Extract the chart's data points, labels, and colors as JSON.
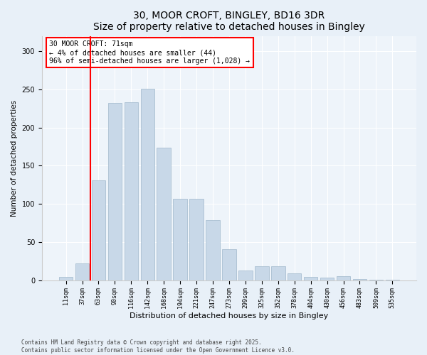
{
  "title1": "30, MOOR CROFT, BINGLEY, BD16 3DR",
  "title2": "Size of property relative to detached houses in Bingley",
  "xlabel": "Distribution of detached houses by size in Bingley",
  "ylabel": "Number of detached properties",
  "categories": [
    "11sqm",
    "37sqm",
    "63sqm",
    "90sqm",
    "116sqm",
    "142sqm",
    "168sqm",
    "194sqm",
    "221sqm",
    "247sqm",
    "273sqm",
    "299sqm",
    "325sqm",
    "352sqm",
    "378sqm",
    "404sqm",
    "430sqm",
    "456sqm",
    "483sqm",
    "509sqm",
    "535sqm"
  ],
  "values": [
    4,
    22,
    131,
    232,
    233,
    251,
    174,
    107,
    107,
    79,
    41,
    13,
    18,
    18,
    9,
    4,
    3,
    5,
    2,
    1,
    1
  ],
  "bar_color": "#c8d8e8",
  "bar_edge_color": "#a0b8cc",
  "vline_x": 1.5,
  "vline_color": "red",
  "annotation_text": "30 MOOR CROFT: 71sqm\n← 4% of detached houses are smaller (44)\n96% of semi-detached houses are larger (1,028) →",
  "annotation_box_color": "white",
  "annotation_box_edge_color": "red",
  "ylim": [
    0,
    320
  ],
  "yticks": [
    0,
    50,
    100,
    150,
    200,
    250,
    300
  ],
  "footer1": "Contains HM Land Registry data © Crown copyright and database right 2025.",
  "footer2": "Contains public sector information licensed under the Open Government Licence v3.0.",
  "bg_color": "#e8f0f8",
  "plot_bg_color": "#eef4fa",
  "title_fontsize": 10,
  "xlabel_fontsize": 8,
  "ylabel_fontsize": 7.5,
  "tick_fontsize": 6,
  "annotation_fontsize": 7,
  "footer_fontsize": 5.5
}
